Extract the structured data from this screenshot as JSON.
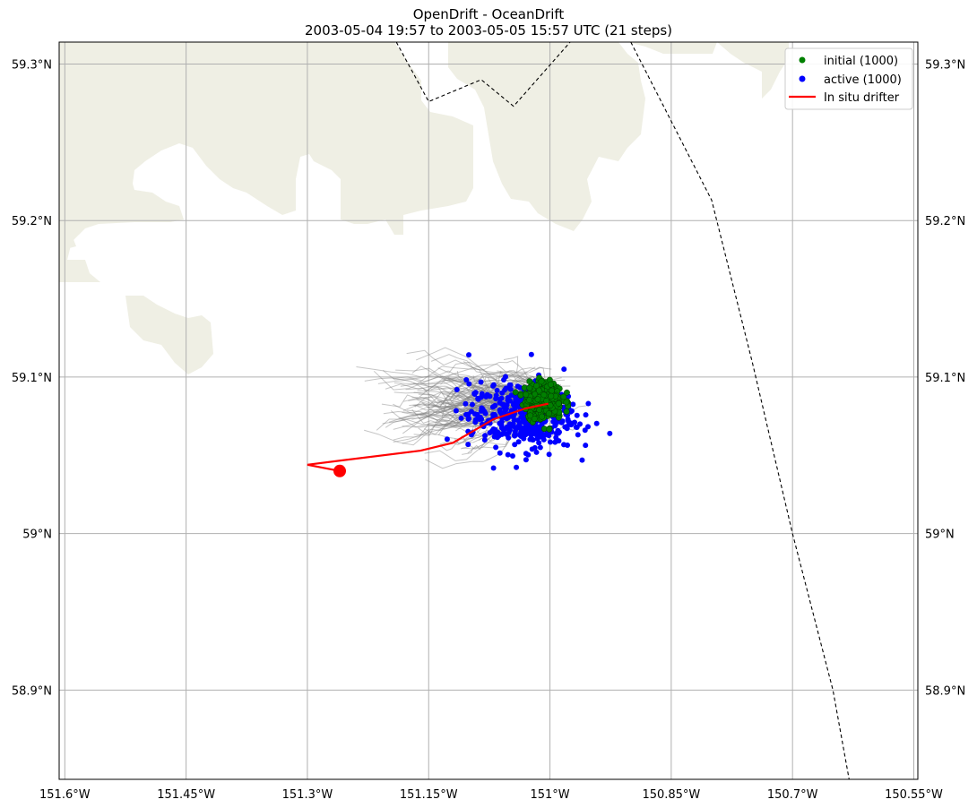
{
  "title": {
    "line1": "OpenDrift - OceanDrift",
    "line2": "2003-05-04 19:57 to 2003-05-05 15:57 UTC (21 steps)"
  },
  "map": {
    "lon_range": [
      -151.607,
      -150.545
    ],
    "lat_range": [
      58.843,
      59.314
    ],
    "land_color": "#EFEFE4",
    "grid_color": "#b0b0b0",
    "lon_ticks": [
      {
        "value": -151.6,
        "label": "151.6°W"
      },
      {
        "value": -151.45,
        "label": "151.45°W"
      },
      {
        "value": -151.3,
        "label": "151.3°W"
      },
      {
        "value": -151.15,
        "label": "151.15°W"
      },
      {
        "value": -151.0,
        "label": "151°W"
      },
      {
        "value": -150.85,
        "label": "150.85°W"
      },
      {
        "value": -150.7,
        "label": "150.7°W"
      },
      {
        "value": -150.55,
        "label": "150.55°W"
      }
    ],
    "lat_ticks": [
      {
        "value": 59.3,
        "label": "59.3°N"
      },
      {
        "value": 59.2,
        "label": "59.2°N"
      },
      {
        "value": 59.1,
        "label": "59.1°N"
      },
      {
        "value": 59.0,
        "label": "59°N"
      },
      {
        "value": 58.9,
        "label": "58.9°N"
      }
    ],
    "boundaries": [
      [
        [
          -151.19,
          59.314
        ],
        [
          -151.15,
          59.276
        ],
        [
          -151.085,
          59.29
        ],
        [
          -151.045,
          59.273
        ],
        [
          -150.975,
          59.314
        ]
      ],
      [
        [
          -150.9,
          59.314
        ],
        [
          -150.8,
          59.213
        ],
        [
          -150.75,
          59.11
        ],
        [
          -150.7,
          59.0
        ],
        [
          -150.65,
          58.9
        ],
        [
          -150.63,
          58.843
        ]
      ]
    ]
  },
  "particles": {
    "initial": {
      "label": "initial (1000)",
      "count": 1000,
      "color": "#008000",
      "center": [
        -151.008,
        59.085
      ],
      "spread": [
        0.028,
        0.014
      ]
    },
    "active": {
      "label": "active (1000)",
      "count": 1000,
      "color": "#0000ff",
      "center": [
        -151.035,
        59.075
      ],
      "spread": [
        0.06,
        0.02
      ]
    },
    "trajectory_color": "#808080"
  },
  "drifter": {
    "label": "In situ drifter",
    "color": "#ff0000",
    "path": [
      [
        -151.002,
        59.083
      ],
      [
        -151.03,
        59.08
      ],
      [
        -151.07,
        59.073
      ],
      [
        -151.12,
        59.058
      ],
      [
        -151.16,
        59.053
      ],
      [
        -151.3,
        59.044
      ],
      [
        -151.26,
        59.04
      ]
    ],
    "end_marker": [
      -151.26,
      59.04
    ]
  },
  "legend": {
    "position": "top-right",
    "items": [
      {
        "label": "initial (1000)",
        "kind": "dot",
        "color": "#008000"
      },
      {
        "label": "active (1000)",
        "kind": "dot",
        "color": "#0000ff"
      },
      {
        "label": "In situ drifter",
        "kind": "line",
        "color": "#ff0000"
      }
    ]
  }
}
